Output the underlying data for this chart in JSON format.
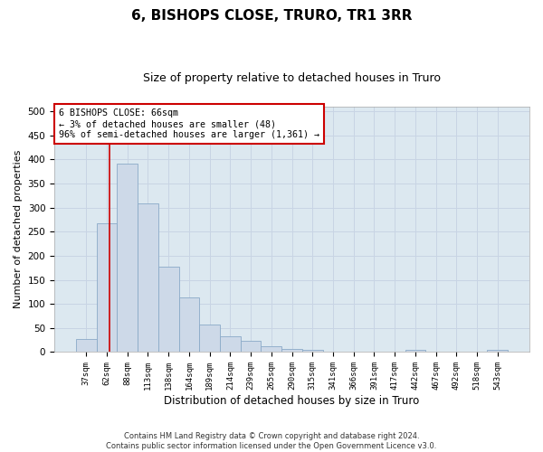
{
  "title": "6, BISHOPS CLOSE, TRURO, TR1 3RR",
  "subtitle": "Size of property relative to detached houses in Truro",
  "xlabel": "Distribution of detached houses by size in Truro",
  "ylabel": "Number of detached properties",
  "bar_color": "#cdd9e8",
  "bar_edge_color": "#8aaac8",
  "categories": [
    "37sqm",
    "62sqm",
    "88sqm",
    "113sqm",
    "138sqm",
    "164sqm",
    "189sqm",
    "214sqm",
    "239sqm",
    "265sqm",
    "290sqm",
    "315sqm",
    "341sqm",
    "366sqm",
    "391sqm",
    "417sqm",
    "442sqm",
    "467sqm",
    "492sqm",
    "518sqm",
    "543sqm"
  ],
  "values": [
    28,
    267,
    392,
    308,
    178,
    113,
    58,
    32,
    24,
    12,
    6,
    5,
    0,
    0,
    0,
    0,
    5,
    0,
    0,
    0,
    4
  ],
  "annotation_line1": "6 BISHOPS CLOSE: 66sqm",
  "annotation_line2": "← 3% of detached houses are smaller (48)",
  "annotation_line3": "96% of semi-detached houses are larger (1,361) →",
  "vline_color": "#cc0000",
  "vline_x": 1.15,
  "ylim": [
    0,
    510
  ],
  "yticks": [
    0,
    50,
    100,
    150,
    200,
    250,
    300,
    350,
    400,
    450,
    500
  ],
  "grid_color": "#c8d4e4",
  "bg_color": "#dce8f0",
  "footer": "Contains HM Land Registry data © Crown copyright and database right 2024.\nContains public sector information licensed under the Open Government Licence v3.0.",
  "title_fontsize": 11,
  "subtitle_fontsize": 9,
  "xlabel_fontsize": 8.5,
  "ylabel_fontsize": 8
}
